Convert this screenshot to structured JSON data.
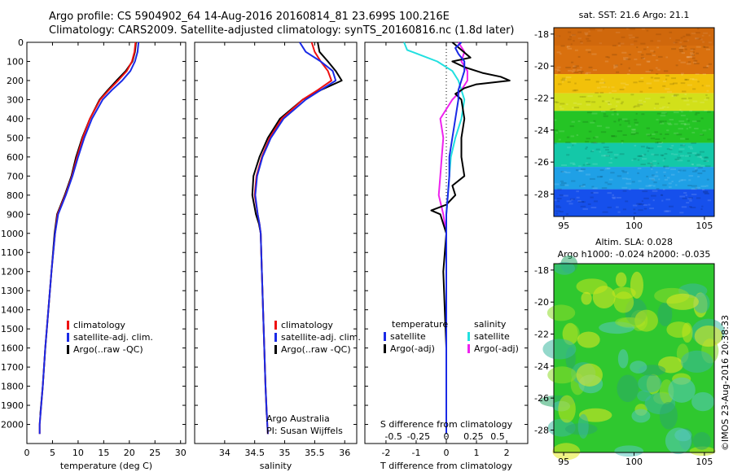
{
  "header": {
    "line1": "Argo profile: CS 5904902_64 14-Aug-2016 20160814_81 23.699S 100.216E",
    "line2": "Climatology: CARS2009. Satellite-adjusted climatology: synTS_20160816.nc (1.8d later)"
  },
  "credit": {
    "org": "Argo Australia",
    "pi": "PI: Susan Wijffels",
    "stamp": "©IMOS 23-Aug-2016 20:38:33"
  },
  "colors": {
    "climatology": "#ee1111",
    "satellite": "#1a2ae6",
    "argo": "#000000",
    "salinity_satellite": "#22e0e0",
    "salinity_argo": "#ee22ee"
  },
  "chart_data": [
    {
      "type": "line",
      "panel": "temperature",
      "xlabel": "temperature (deg C)",
      "xlim": [
        0,
        31
      ],
      "xticks": [
        0,
        5,
        10,
        15,
        20,
        25,
        30
      ],
      "ylim": [
        2100,
        0
      ],
      "yticks": [
        0,
        100,
        200,
        300,
        400,
        500,
        600,
        700,
        800,
        900,
        1000,
        1100,
        1200,
        1300,
        1400,
        1500,
        1600,
        1700,
        1800,
        1900,
        2000
      ],
      "grid": false,
      "legend": "lower-left",
      "legend_labels": [
        "climatology",
        "satellite-adj. clim.",
        "Argo(..raw -QC)"
      ],
      "series": [
        {
          "name": "climatology",
          "depth": [
            0,
            50,
            100,
            150,
            200,
            250,
            300,
            400,
            500,
            600,
            700,
            800,
            900,
            1000,
            1200,
            1400,
            1600,
            1800,
            2000,
            2050
          ],
          "values": [
            21.2,
            21.0,
            20.5,
            19.5,
            17.8,
            16.0,
            14.3,
            12.3,
            10.9,
            9.8,
            8.8,
            7.5,
            6.0,
            5.5,
            4.8,
            4.2,
            3.6,
            3.1,
            2.5,
            2.5
          ]
        },
        {
          "name": "satellite-adj. clim.",
          "depth": [
            0,
            50,
            100,
            150,
            200,
            250,
            300,
            400,
            500,
            600,
            700,
            800,
            900,
            1000,
            1200,
            1400,
            1600,
            1800,
            2000,
            2050
          ],
          "values": [
            21.8,
            21.6,
            21.1,
            20.2,
            18.6,
            16.6,
            14.8,
            12.7,
            11.2,
            10.0,
            8.9,
            7.6,
            6.1,
            5.5,
            4.8,
            4.2,
            3.6,
            3.1,
            2.5,
            2.5
          ]
        },
        {
          "name": "Argo(..raw -QC)",
          "depth": [
            0,
            50,
            100,
            150,
            200,
            250,
            300,
            400,
            500,
            600,
            700,
            800,
            900,
            1000,
            1200,
            1400,
            1600,
            1800,
            1950
          ],
          "values": [
            21.3,
            21.1,
            20.6,
            19.3,
            17.5,
            15.8,
            14.2,
            12.3,
            10.8,
            9.6,
            8.7,
            7.4,
            5.9,
            5.4,
            4.8,
            4.2,
            3.6,
            3.1,
            2.6
          ]
        }
      ]
    },
    {
      "type": "line",
      "panel": "salinity",
      "xlabel": "salinity",
      "xlim": [
        33.5,
        36.2
      ],
      "xticks": [
        34,
        34.5,
        35,
        35.5,
        36
      ],
      "ylim": [
        2100,
        0
      ],
      "grid": false,
      "legend": "lower-right",
      "legend_labels": [
        "climatology",
        "satellite-adj. clim.",
        "Argo(..raw -QC)"
      ],
      "series": [
        {
          "name": "climatology",
          "depth": [
            0,
            50,
            100,
            150,
            200,
            250,
            300,
            400,
            500,
            600,
            700,
            800,
            900,
            950,
            1000,
            1200,
            1400,
            1600,
            1800,
            2000,
            2050
          ],
          "values": [
            35.45,
            35.5,
            35.6,
            35.72,
            35.78,
            35.55,
            35.3,
            34.95,
            34.75,
            34.62,
            34.53,
            34.5,
            34.55,
            34.58,
            34.6,
            34.62,
            34.64,
            34.66,
            34.68,
            34.71,
            34.72
          ]
        },
        {
          "name": "satellite-adj. clim.",
          "depth": [
            0,
            50,
            100,
            150,
            200,
            250,
            300,
            400,
            500,
            600,
            700,
            800,
            900,
            950,
            1000,
            1200,
            1400,
            1600,
            1800,
            2000,
            2050
          ],
          "values": [
            35.25,
            35.35,
            35.6,
            35.8,
            35.85,
            35.6,
            35.35,
            34.98,
            34.77,
            34.63,
            34.54,
            34.51,
            34.55,
            34.58,
            34.6,
            34.62,
            34.64,
            34.66,
            34.68,
            34.71,
            34.72
          ]
        },
        {
          "name": "Argo(..raw -QC)",
          "depth": [
            0,
            50,
            100,
            150,
            200,
            250,
            300,
            400,
            500,
            600,
            700,
            800,
            900,
            950,
            1000,
            1200,
            1400,
            1600,
            1800,
            1950
          ],
          "values": [
            35.55,
            35.58,
            35.72,
            35.85,
            35.95,
            35.6,
            35.3,
            34.92,
            34.72,
            34.58,
            34.48,
            34.46,
            34.52,
            34.57,
            34.6,
            34.62,
            34.64,
            34.66,
            34.68,
            34.7
          ]
        }
      ]
    },
    {
      "type": "line",
      "panel": "difference",
      "xlabel": "T difference from climatology",
      "x2label": "S difference from climatology",
      "xlim": [
        -2.7,
        2.7
      ],
      "xticks": [
        -2,
        -1,
        0,
        1,
        2
      ],
      "x2ticks": [
        "-0.5",
        "-0.25",
        "0",
        "0.25",
        "0.5"
      ],
      "ylim": [
        2100,
        0
      ],
      "grid": false,
      "legend": "lower-center",
      "legend_groups": [
        "temperature",
        "salinity"
      ],
      "legend_labels": [
        "satellite",
        "Argo(-adj)",
        "satellite",
        "Argo(-adj)"
      ],
      "series": [
        {
          "name": "temperature satellite",
          "depth": [
            0,
            30,
            60,
            100,
            150,
            200,
            250,
            300,
            400,
            500,
            600,
            700,
            800,
            900,
            1000,
            1200,
            1400,
            1600,
            1800,
            2050
          ],
          "values": [
            0.5,
            0.3,
            0.4,
            0.6,
            0.6,
            0.5,
            0.4,
            0.4,
            0.3,
            0.2,
            0.1,
            0.1,
            0.05,
            0.0,
            0.0,
            0.0,
            0.0,
            0.0,
            0.0,
            0.0
          ]
        },
        {
          "name": "temperature Argo(-adj)",
          "depth": [
            0,
            40,
            80,
            100,
            130,
            160,
            180,
            200,
            220,
            240,
            270,
            300,
            400,
            500,
            600,
            700,
            750,
            800,
            850,
            880,
            900,
            1000,
            1200,
            1400,
            1600,
            1800,
            1950
          ],
          "values": [
            0.2,
            0.5,
            0.8,
            0.2,
            0.6,
            1.2,
            1.8,
            2.1,
            1.0,
            0.6,
            0.3,
            0.5,
            0.6,
            0.5,
            0.5,
            0.6,
            0.2,
            0.3,
            0.0,
            -0.5,
            -0.2,
            0.0,
            -0.1,
            -0.05,
            0.0,
            0.0,
            0.0
          ]
        },
        {
          "name": "salinity satellite",
          "depth": [
            0,
            40,
            70,
            100,
            150,
            200,
            250,
            300,
            400,
            500,
            600,
            700,
            800,
            900,
            1000,
            1200,
            1400,
            1600,
            1800,
            2050
          ],
          "values": [
            -1.4,
            -1.3,
            -0.8,
            -0.3,
            0.2,
            0.4,
            0.5,
            0.6,
            0.5,
            0.3,
            0.15,
            0.1,
            0.05,
            0.0,
            0.0,
            0.0,
            0.0,
            0.0,
            0.0,
            0.0
          ]
        },
        {
          "name": "salinity Argo(-adj)",
          "depth": [
            0,
            50,
            100,
            150,
            200,
            250,
            300,
            400,
            500,
            600,
            700,
            800,
            900,
            1000,
            1200,
            1400,
            1600,
            1800,
            1950
          ],
          "values": [
            0.4,
            0.6,
            0.5,
            0.7,
            0.7,
            0.5,
            0.2,
            -0.2,
            -0.1,
            -0.15,
            -0.2,
            -0.25,
            -0.1,
            0.0,
            0.0,
            0.0,
            0.0,
            0.0,
            0.0
          ]
        }
      ]
    },
    {
      "type": "heatmap",
      "panel": "sst-map",
      "title": "sat. SST: 21.6 Argo: 21.1",
      "xticks": [
        95,
        100,
        105
      ],
      "yticks": [
        -18,
        -20,
        -22,
        -24,
        -26,
        -28
      ],
      "colorscale": "jet",
      "bands": [
        {
          "lat_from": -17.6,
          "lat_to": -20.5,
          "color": "#d9700e"
        },
        {
          "lat_from": -20.5,
          "lat_to": -21.7,
          "color": "#f2c10a"
        },
        {
          "lat_from": -21.7,
          "lat_to": -22.8,
          "color": "#d2e01a"
        },
        {
          "lat_from": -22.8,
          "lat_to": -24.8,
          "color": "#25c425"
        },
        {
          "lat_from": -24.8,
          "lat_to": -26.3,
          "color": "#14c8a8"
        },
        {
          "lat_from": -26.3,
          "lat_to": -27.7,
          "color": "#1fa0e6"
        },
        {
          "lat_from": -27.7,
          "lat_to": -29.4,
          "color": "#1650ec"
        }
      ]
    },
    {
      "type": "heatmap",
      "panel": "sla-map",
      "title": "Altim. SLA: 0.028",
      "subtitle": "Argo h1000: -0.024 h2000: -0.035",
      "xticks": [
        95,
        100,
        105
      ],
      "yticks": [
        -18,
        -20,
        -22,
        -24,
        -26,
        -28
      ],
      "colorscale": "jet",
      "base_color": "#2fc82f"
    }
  ]
}
